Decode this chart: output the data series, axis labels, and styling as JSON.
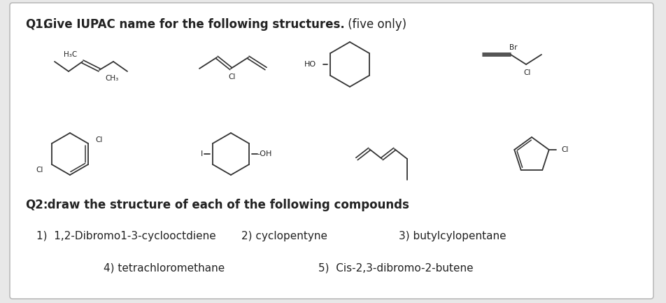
{
  "background_color": "#e8e8e8",
  "card_color": "#ffffff",
  "text_color": "#222222",
  "molecule_color": "#333333",
  "font_size_q1": 12,
  "font_size_body": 11,
  "font_size_label": 8,
  "q1_label": "Q1:",
  "q1_text": "Give IUPAC name for the following structures.",
  "q1_suffix": " (five only)",
  "q2_label": "Q2:",
  "q2_text": " draw the structure of each of the following compounds",
  "item1": "1)  1,2-Dibromo1-3-cyclooctdiene",
  "item2": "2) cyclopentyne",
  "item3": "3) butylcylopentane",
  "item4": "4) tetrachloromethane",
  "item5": "5)  Cis-2,3-dibromo-2-butene"
}
